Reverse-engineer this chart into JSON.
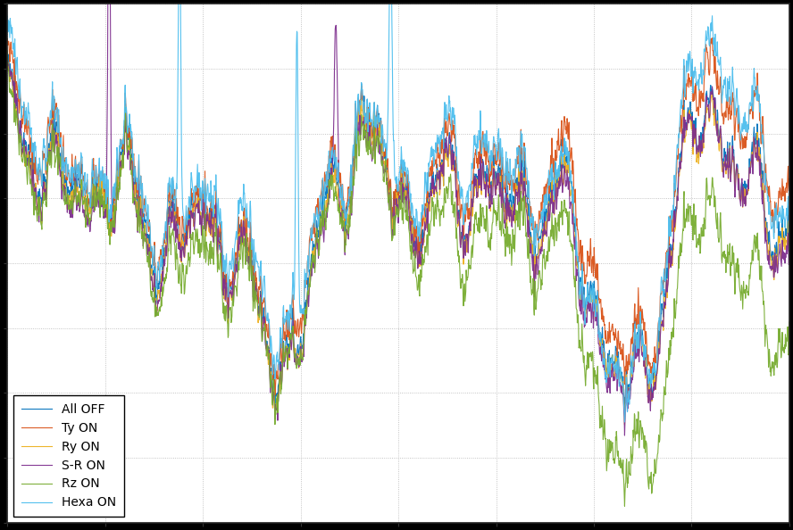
{
  "title": "",
  "xlabel": "",
  "ylabel": "",
  "legend_labels": [
    "All OFF",
    "Ty ON",
    "Ry ON",
    "S-R ON",
    "Rz ON",
    "Hexa ON"
  ],
  "line_colors": [
    "#0072BD",
    "#D95319",
    "#EDB120",
    "#7E2F8E",
    "#77AC30",
    "#4DBEEE"
  ],
  "line_widths": [
    0.8,
    0.8,
    0.8,
    0.8,
    0.8,
    0.8
  ],
  "background_color": "#ffffff",
  "outer_background": "#000000",
  "n_points": 2000,
  "seed": 42,
  "ylim": [
    -10,
    3
  ],
  "xlim": [
    0,
    1999
  ],
  "legend_loc": "lower left",
  "legend_fontsize": 10,
  "figsize": [
    8.88,
    5.94
  ],
  "dpi": 100
}
